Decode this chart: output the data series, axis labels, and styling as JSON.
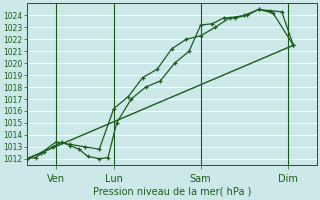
{
  "xlabel": "Pression niveau de la mer( hPa )",
  "bg_color": "#cce8e8",
  "grid_color": "#ffffff",
  "line_color": "#1a5c1a",
  "ylim": [
    1011.5,
    1025.0
  ],
  "yticks": [
    1012,
    1013,
    1014,
    1015,
    1016,
    1017,
    1018,
    1019,
    1020,
    1021,
    1022,
    1023,
    1024
  ],
  "day_labels": [
    "Ven",
    "Lun",
    "Sam",
    "Dim"
  ],
  "day_positions": [
    1,
    3,
    6,
    9
  ],
  "xlim": [
    0,
    10
  ],
  "series1_x": [
    0.0,
    0.3,
    0.6,
    0.9,
    1.2,
    1.5,
    1.8,
    2.1,
    2.5,
    2.8,
    3.1,
    3.6,
    4.1,
    4.6,
    5.1,
    5.6,
    6.0,
    6.4,
    6.8,
    7.2,
    7.6,
    8.0,
    8.4,
    8.8,
    9.2
  ],
  "series1_y": [
    1012.0,
    1012.1,
    1012.6,
    1013.0,
    1013.4,
    1013.1,
    1012.8,
    1012.2,
    1012.0,
    1012.1,
    1015.0,
    1017.0,
    1018.0,
    1018.5,
    1020.0,
    1021.0,
    1023.2,
    1023.3,
    1023.8,
    1023.8,
    1024.0,
    1024.5,
    1024.4,
    1024.3,
    1021.5
  ],
  "series2_x": [
    0.0,
    0.5,
    1.0,
    1.5,
    2.0,
    2.5,
    3.0,
    3.5,
    4.0,
    4.5,
    5.0,
    5.5,
    6.0,
    6.5,
    7.0,
    7.5,
    8.0,
    8.5,
    9.2
  ],
  "series2_y": [
    1012.0,
    1012.5,
    1013.4,
    1013.2,
    1013.0,
    1012.8,
    1016.2,
    1017.2,
    1018.8,
    1019.5,
    1021.2,
    1022.0,
    1022.3,
    1023.0,
    1023.8,
    1024.0,
    1024.5,
    1024.2,
    1021.5
  ],
  "series3_x": [
    0.0,
    9.2
  ],
  "series3_y": [
    1012.0,
    1021.5
  ]
}
